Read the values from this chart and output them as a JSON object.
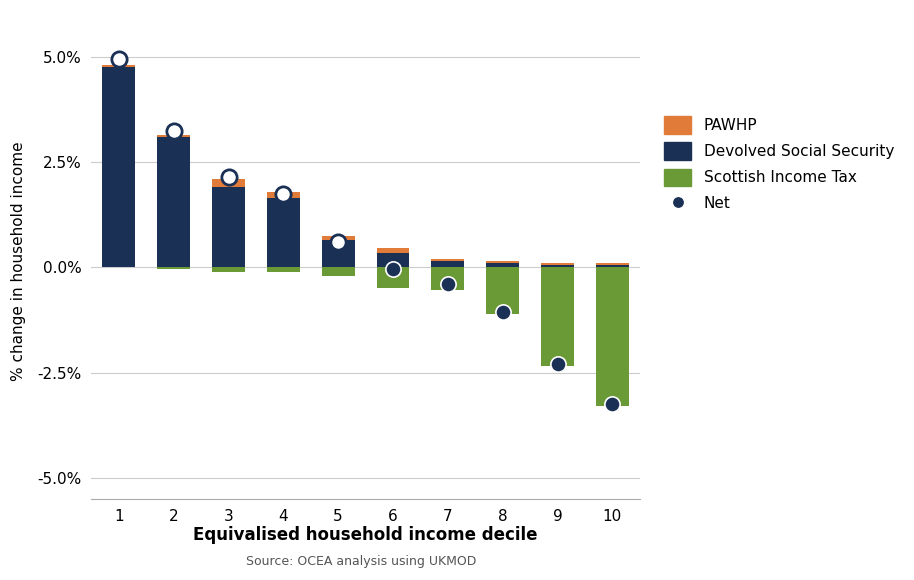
{
  "deciles": [
    1,
    2,
    3,
    4,
    5,
    6,
    7,
    8,
    9,
    10
  ],
  "pawhp": [
    0.05,
    0.05,
    0.2,
    0.15,
    0.1,
    0.1,
    0.05,
    0.05,
    0.05,
    0.05
  ],
  "devolved_ss": [
    4.75,
    3.1,
    1.9,
    1.65,
    0.65,
    0.35,
    0.15,
    0.1,
    0.05,
    0.05
  ],
  "income_tax": [
    0.0,
    -0.05,
    -0.1,
    -0.1,
    -0.2,
    -0.5,
    -0.55,
    -1.1,
    -2.35,
    -3.3
  ],
  "net": [
    4.95,
    3.25,
    2.15,
    1.75,
    0.6,
    -0.05,
    -0.4,
    -1.05,
    -2.3,
    -3.25
  ],
  "net_open_circle": [
    true,
    true,
    true,
    true,
    true,
    false,
    false,
    false,
    false,
    false
  ],
  "colors": {
    "pawhp": "#e07b39",
    "devolved_ss": "#1a3055",
    "income_tax": "#6a9a35",
    "net_dark": "#1a3055"
  },
  "ylabel": "% change in household income",
  "xlabel": "Equivalised household income decile",
  "source": "Source: OCEA analysis using UKMOD",
  "ylim": [
    -5.5,
    5.8
  ],
  "yticks": [
    -5.0,
    -2.5,
    0.0,
    2.5,
    5.0
  ],
  "background_color": "#ffffff",
  "grid_color": "#cccccc"
}
